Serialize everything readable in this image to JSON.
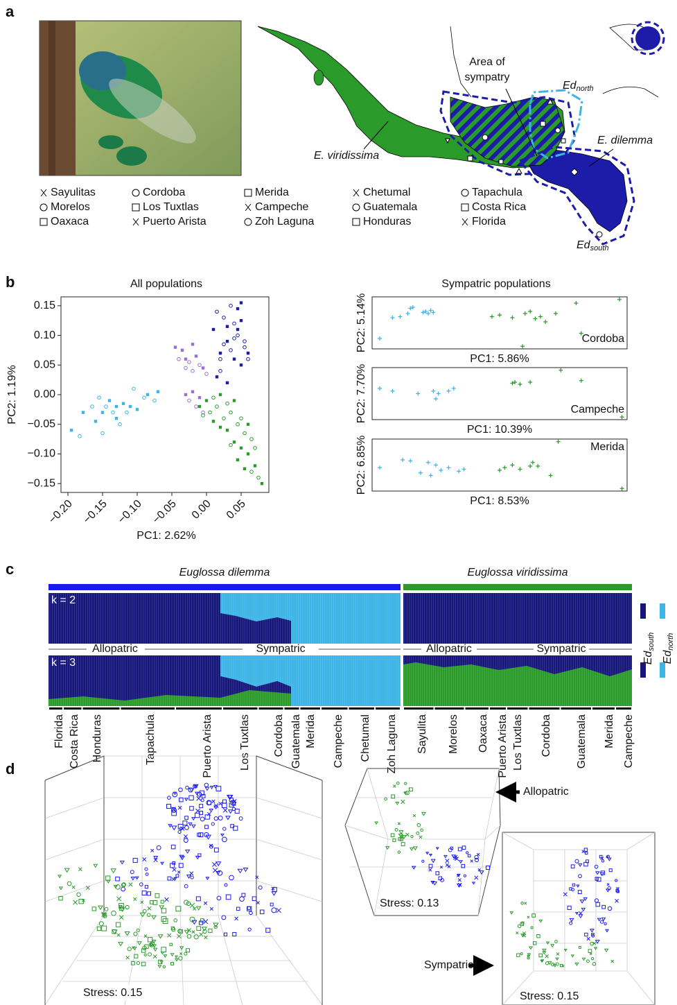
{
  "panel_labels": [
    "a",
    "b",
    "c",
    "d"
  ],
  "map": {
    "annotations": {
      "sympatry": [
        "Area of",
        "sympatry"
      ],
      "viridissima": "E. viridissima",
      "dilemma": "E. dilemma",
      "ed_north": {
        "base": "Ed",
        "sub": "north"
      },
      "ed_south": {
        "base": "Ed",
        "sub": "south"
      }
    },
    "legend": [
      [
        "Sayulitas",
        "Morelos",
        "Oaxaca"
      ],
      [
        "Cordoba",
        "Los Tuxtlas",
        "Puerto Arista"
      ],
      [
        "Merida",
        "Campeche",
        "Zoh Laguna"
      ],
      [
        "Chetumal",
        "Guatemala",
        "Honduras"
      ],
      [
        "Tapachula",
        "Costa Rica",
        "Florida"
      ]
    ]
  },
  "chart_data": [
    {
      "type": "scatter",
      "title": "All populations",
      "x_label": "PC1: 2.62%",
      "y_label": "PC2: 1.19%",
      "xlim": [
        -0.21,
        0.09
      ],
      "ylim": [
        -0.165,
        0.165
      ],
      "xticks": [
        {
          "value": -0.2,
          "label": "−0.20"
        },
        {
          "value": -0.15,
          "label": "−0.15"
        },
        {
          "value": -0.1,
          "label": "−0.10"
        },
        {
          "value": -0.05,
          "label": "−0.05"
        },
        {
          "value": 0,
          "label": "0.00"
        },
        0.05
      ],
      "yticks": [
        0.15,
        {
          "value": 0.1,
          "label": "0.10"
        },
        0.05,
        {
          "value": 0,
          "label": "0.00"
        },
        {
          "value": -0.05,
          "label": "−0.05"
        },
        {
          "value": -0.1,
          "label": "−0.10"
        },
        {
          "value": -0.15,
          "label": "−0.15"
        }
      ],
      "series": [
        {
          "color": "#3cb4e6",
          "x": [
            -0.195,
            -0.183,
            -0.178,
            -0.165,
            -0.16,
            -0.155,
            -0.15,
            -0.145,
            -0.14,
            -0.135,
            -0.13,
            -0.125,
            -0.12,
            -0.115,
            -0.11,
            -0.105,
            -0.1,
            -0.09,
            -0.085,
            -0.075,
            -0.07,
            -0.15,
            -0.13
          ],
          "values": [
            -0.06,
            -0.07,
            -0.03,
            -0.02,
            -0.045,
            -0.005,
            -0.03,
            -0.02,
            -0.01,
            -0.03,
            -0.02,
            -0.05,
            -0.015,
            -0.03,
            -0.02,
            0.01,
            -0.025,
            -0.005,
            0.0,
            -0.01,
            0.005,
            -0.065,
            -0.04
          ]
        },
        {
          "color": "#9b6fcf",
          "x": [
            -0.045,
            -0.04,
            -0.035,
            -0.03,
            -0.03,
            -0.025,
            -0.02,
            -0.02,
            -0.015,
            -0.01,
            -0.005,
            0.0,
            -0.03,
            -0.025,
            -0.02,
            -0.015,
            -0.01,
            -0.005
          ],
          "values": [
            0.08,
            0.06,
            0.075,
            0.045,
            0.06,
            0.055,
            0.085,
            0.04,
            0.065,
            0.05,
            0.045,
            0.035,
            0.0,
            -0.01,
            0.005,
            -0.02,
            -0.005,
            -0.03
          ]
        },
        {
          "color": "#1c1ca8",
          "x": [
            0.01,
            0.015,
            0.02,
            0.025,
            0.03,
            0.035,
            0.04,
            0.045,
            0.05,
            0.055,
            0.06,
            0.02,
            0.03,
            0.04,
            0.05,
            0.035,
            0.045,
            0.055,
            0.015,
            0.025,
            0.03,
            0.04,
            0.05,
            0.06,
            0.045,
            0.02
          ],
          "values": [
            0.11,
            0.14,
            0.07,
            0.13,
            0.09,
            0.15,
            0.06,
            0.1,
            0.155,
            0.08,
            0.07,
            0.04,
            0.02,
            0.12,
            0.05,
            0.075,
            0.11,
            0.09,
            0.03,
            0.085,
            0.115,
            0.095,
            0.125,
            0.06,
            0.145,
            0.06
          ]
        },
        {
          "color": "#2a9a2a",
          "x": [
            -0.01,
            -0.005,
            0.0,
            0.005,
            0.01,
            0.015,
            0.02,
            0.025,
            0.03,
            0.035,
            0.04,
            0.045,
            0.05,
            0.055,
            0.06,
            0.065,
            0.07,
            0.075,
            0.08,
            0.01,
            0.02,
            0.03,
            0.04,
            0.05,
            0.06,
            0.07,
            0.045,
            0.035,
            0.055,
            0.065
          ],
          "values": [
            -0.02,
            -0.035,
            -0.01,
            -0.03,
            -0.045,
            -0.02,
            -0.055,
            -0.04,
            -0.06,
            -0.03,
            -0.08,
            -0.05,
            -0.09,
            -0.065,
            -0.1,
            -0.075,
            -0.12,
            -0.14,
            -0.15,
            -0.005,
            0.0,
            -0.015,
            -0.01,
            -0.04,
            -0.05,
            -0.09,
            -0.11,
            -0.085,
            -0.125,
            -0.13
          ]
        }
      ]
    },
    {
      "type": "scatter",
      "title": "Sympatric populations",
      "x_label": "PC1: 5.86%",
      "y_label": "PC2: 5.14%",
      "annotation": "Cordoba",
      "xlim": [
        0,
        1
      ],
      "ylim": [
        0,
        1
      ],
      "series": [
        {
          "color": "#3cb4e6",
          "x": [
            0.03,
            0.08,
            0.11,
            0.14,
            0.15,
            0.16,
            0.2,
            0.21,
            0.22,
            0.23,
            0.24
          ],
          "values": [
            0.2,
            0.6,
            0.62,
            0.68,
            0.78,
            0.8,
            0.7,
            0.72,
            0.68,
            0.74,
            0.7
          ]
        },
        {
          "color": "#2a9a2a",
          "x": [
            0.47,
            0.5,
            0.55,
            0.6,
            0.62,
            0.64,
            0.66,
            0.68,
            0.72,
            0.8,
            0.82,
            0.97,
            0.59
          ],
          "values": [
            0.62,
            0.65,
            0.6,
            0.68,
            0.72,
            0.58,
            0.62,
            0.52,
            0.68,
            0.88,
            0.3,
            0.95,
            0.05
          ]
        }
      ]
    },
    {
      "type": "scatter",
      "x_label": "PC1: 10.39%",
      "y_label": "PC2: 7.70%",
      "annotation": "Campeche",
      "xlim": [
        0,
        1
      ],
      "ylim": [
        0,
        1
      ],
      "series": [
        {
          "color": "#3cb4e6",
          "x": [
            0.03,
            0.08,
            0.18,
            0.24,
            0.25,
            0.26,
            0.3,
            0.32
          ],
          "values": [
            0.6,
            0.55,
            0.5,
            0.55,
            0.4,
            0.5,
            0.55,
            0.6
          ]
        },
        {
          "color": "#2a9a2a",
          "x": [
            0.55,
            0.56,
            0.58,
            0.62,
            0.74,
            0.82,
            0.98
          ],
          "values": [
            0.7,
            0.72,
            0.68,
            0.72,
            0.95,
            0.75,
            0.05
          ]
        }
      ]
    },
    {
      "type": "scatter",
      "x_label": "PC1: 8.53%",
      "y_label": "PC2: 6.85%",
      "annotation": "Merida",
      "xlim": [
        0,
        1
      ],
      "ylim": [
        0,
        1
      ],
      "series": [
        {
          "color": "#3cb4e6",
          "x": [
            0.03,
            0.12,
            0.15,
            0.19,
            0.22,
            0.23,
            0.25,
            0.27,
            0.3,
            0.34,
            0.36
          ],
          "values": [
            0.45,
            0.6,
            0.58,
            0.35,
            0.55,
            0.3,
            0.5,
            0.4,
            0.45,
            0.38,
            0.42
          ]
        },
        {
          "color": "#2a9a2a",
          "x": [
            0.5,
            0.52,
            0.55,
            0.58,
            0.62,
            0.63,
            0.65,
            0.7,
            0.73,
            0.98
          ],
          "values": [
            0.4,
            0.45,
            0.5,
            0.42,
            0.48,
            0.55,
            0.48,
            0.3,
            0.95,
            0.05
          ]
        }
      ]
    }
  ],
  "structure": {
    "species": [
      "Euglossa dilemma",
      "Euglossa viridissima"
    ],
    "k": [
      "k = 2",
      "k = 3"
    ],
    "groups": [
      "Allopatric",
      "Sympatric",
      "Allopatric",
      "Sympatric"
    ],
    "legend": [
      {
        "base": "Ed",
        "sub": "south"
      },
      {
        "base": "Ed",
        "sub": "north"
      }
    ],
    "populations_dilemma": [
      "Florida",
      "Costa Rica",
      "Honduras",
      "Tapachula",
      "Puerto Arista",
      "Los Tuxtlas",
      "Cordoba",
      "Guatemala",
      "Merida",
      "Campeche",
      "Chetumal",
      "Zoh Laguna"
    ],
    "populations_viridissima": [
      "Sayulita",
      "Morelos",
      "Oaxaca",
      "Puerto Arista",
      "Los Tuxtlas",
      "Cordoba",
      "Guatemala",
      "Merida",
      "Campeche"
    ]
  },
  "nmds": {
    "stress": [
      "Stress: 0.15",
      "Stress: 0.13",
      "Stress: 0.15"
    ],
    "arrows": [
      "Allopatric",
      "Sympatric"
    ]
  }
}
